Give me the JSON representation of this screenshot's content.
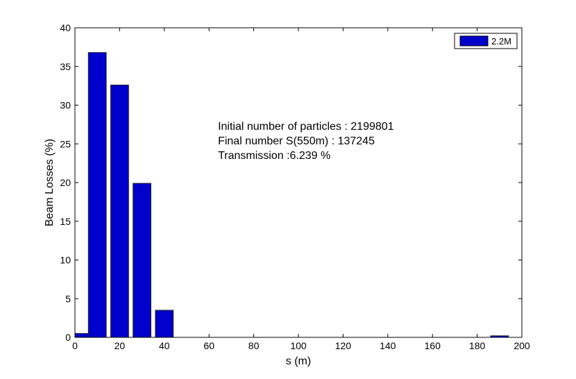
{
  "chart_data": {
    "type": "bar",
    "xlabel": "s (m)",
    "ylabel": "Beam Losses (%)",
    "xlim": [
      0,
      200
    ],
    "ylim": [
      0,
      40
    ],
    "xticks": [
      0,
      20,
      40,
      60,
      80,
      100,
      120,
      140,
      160,
      180,
      200
    ],
    "yticks": [
      0,
      5,
      10,
      15,
      20,
      25,
      30,
      35,
      40
    ],
    "bar_width": 8,
    "grid": false,
    "legend_position": "top-right",
    "series": [
      {
        "name": "2.2M",
        "color": "#0000cc",
        "x": [
          2,
          10,
          20,
          30,
          40,
          190
        ],
        "values": [
          0.5,
          36.8,
          32.6,
          19.9,
          3.5,
          0.2
        ]
      }
    ],
    "annotations": [
      "Initial number of particles : 2199801",
      "Final number S(550m) : 137245",
      "Transmission :6.239 %"
    ]
  }
}
